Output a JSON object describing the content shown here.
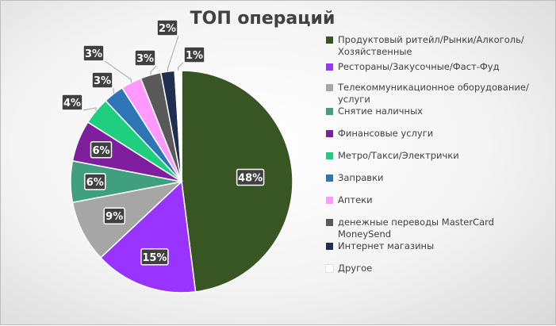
{
  "chart_data": {
    "type": "pie",
    "title": "ТОП операций",
    "categories": [
      "Продуктовый ритейл/Рынки/Алкоголь/Хозяйственные",
      "Рестораны/Закусочные/Фаст-Фуд",
      "Телекоммуникационное оборудование/услуги",
      "Снятие наличных",
      "Финансовые услуги",
      "Метро/Такси/Электрички",
      "Заправки",
      "Аптеки",
      "денежные переводы MasterCard MoneySend",
      "Интернет магазины",
      "Другое"
    ],
    "values": [
      48,
      15,
      9,
      6,
      6,
      4,
      3,
      3,
      3,
      2,
      1
    ],
    "labels": [
      "48%",
      "15%",
      "9%",
      "6%",
      "6%",
      "4%",
      "3%",
      "3%",
      "3%",
      "2%",
      "1%"
    ],
    "colors": [
      "#375623",
      "#9933ff",
      "#a6a6a6",
      "#3f9f7f",
      "#7f1f9f",
      "#1fcf7f",
      "#2e75b6",
      "#ff99ff",
      "#595959",
      "#1f2f4f",
      "#ffffff"
    ],
    "legend_position": "right"
  }
}
